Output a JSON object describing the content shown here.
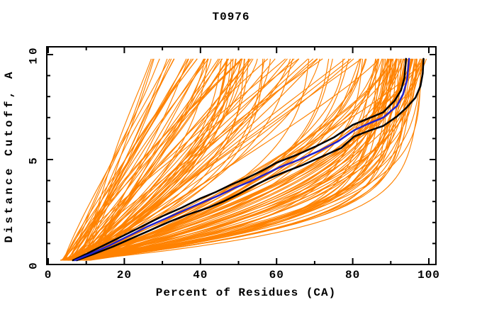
{
  "window": {
    "title": "T0976"
  },
  "chart_data": {
    "type": "line",
    "title": "T0976",
    "xlabel": "Percent of Residues (CA)",
    "ylabel": "Distance Cutoff, A",
    "xlim": [
      0,
      100
    ],
    "ylim": [
      0,
      10
    ],
    "grid": false,
    "legend": "none",
    "background": "#ffffff",
    "axis_color": "#000000",
    "x_major_ticks": [
      0,
      20,
      40,
      60,
      80,
      100
    ],
    "x_minor_ticks": [
      10,
      30,
      50,
      70,
      90
    ],
    "x_tick_labels": [
      "0",
      "20",
      "40",
      "60",
      "80",
      "100"
    ],
    "y_major_ticks": [
      0,
      5,
      10
    ],
    "y_minor_ticks": [
      1,
      2,
      3,
      4,
      6,
      7,
      8,
      9
    ],
    "y_tick_labels": [
      "0",
      "5",
      "10"
    ],
    "series": [
      {
        "name": "highlighted-model-black-1",
        "color": "#000000",
        "width": 2.5,
        "points": [
          [
            6.5,
            0.2
          ],
          [
            10,
            0.5
          ],
          [
            15,
            0.95
          ],
          [
            20,
            1.4
          ],
          [
            25,
            1.85
          ],
          [
            30,
            2.3
          ],
          [
            35,
            2.7
          ],
          [
            40,
            3.15
          ],
          [
            44,
            3.45
          ],
          [
            48,
            3.8
          ],
          [
            52,
            4.1
          ],
          [
            56,
            4.45
          ],
          [
            60,
            4.85
          ],
          [
            65,
            5.2
          ],
          [
            70,
            5.6
          ],
          [
            75,
            6.05
          ],
          [
            80,
            6.65
          ],
          [
            84,
            6.95
          ],
          [
            88,
            7.25
          ],
          [
            91,
            7.8
          ],
          [
            92.7,
            8.3
          ],
          [
            93.6,
            8.9
          ],
          [
            94,
            9.8
          ]
        ]
      },
      {
        "name": "highlighted-model-black-2",
        "color": "#000000",
        "width": 2.5,
        "points": [
          [
            7.5,
            0.2
          ],
          [
            12,
            0.5
          ],
          [
            17,
            0.85
          ],
          [
            22,
            1.25
          ],
          [
            27,
            1.65
          ],
          [
            32,
            2.05
          ],
          [
            37,
            2.4
          ],
          [
            42,
            2.7
          ],
          [
            46,
            3.0
          ],
          [
            50,
            3.35
          ],
          [
            54,
            3.75
          ],
          [
            58,
            4.1
          ],
          [
            62,
            4.4
          ],
          [
            67,
            4.75
          ],
          [
            72,
            5.15
          ],
          [
            77,
            5.55
          ],
          [
            80.4,
            6.1
          ],
          [
            84,
            6.35
          ],
          [
            88,
            6.6
          ],
          [
            91.6,
            7.05
          ],
          [
            94,
            7.45
          ],
          [
            96.5,
            7.95
          ],
          [
            97.8,
            8.5
          ],
          [
            98.4,
            9.1
          ],
          [
            98.6,
            9.8
          ]
        ]
      },
      {
        "name": "highlighted-model-blue",
        "color": "#2222cc",
        "width": 2.5,
        "points": [
          [
            7,
            0.2
          ],
          [
            11,
            0.5
          ],
          [
            16,
            0.9
          ],
          [
            21,
            1.35
          ],
          [
            26,
            1.8
          ],
          [
            31,
            2.2
          ],
          [
            36,
            2.6
          ],
          [
            41,
            3.0
          ],
          [
            45,
            3.3
          ],
          [
            49,
            3.65
          ],
          [
            53,
            3.95
          ],
          [
            57,
            4.3
          ],
          [
            61,
            4.65
          ],
          [
            66,
            5.0
          ],
          [
            71,
            5.4
          ],
          [
            76,
            5.85
          ],
          [
            80.4,
            6.4
          ],
          [
            84,
            6.7
          ],
          [
            88,
            7.0
          ],
          [
            91.6,
            7.55
          ],
          [
            93.2,
            8.1
          ],
          [
            94.3,
            8.8
          ],
          [
            94.8,
            9.8
          ]
        ]
      }
    ],
    "ensemble": {
      "name": "server-model-curves",
      "color": "#ff8200",
      "width": 1.15,
      "count": 150,
      "seed": 42,
      "y_start": 0.2,
      "y_end": 9.8,
      "x_start_range": [
        3,
        11
      ],
      "x_end_groups": [
        {
          "prob": 0.17,
          "range": [
            26,
            40
          ],
          "shape": "linear"
        },
        {
          "prob": 0.23,
          "range": [
            40,
            55
          ],
          "shape": "mixed"
        },
        {
          "prob": 0.17,
          "range": [
            55,
            85
          ],
          "shape": "mixed"
        },
        {
          "prob": 0.43,
          "range": [
            86,
            99.5
          ],
          "shape": "knee"
        }
      ]
    }
  }
}
